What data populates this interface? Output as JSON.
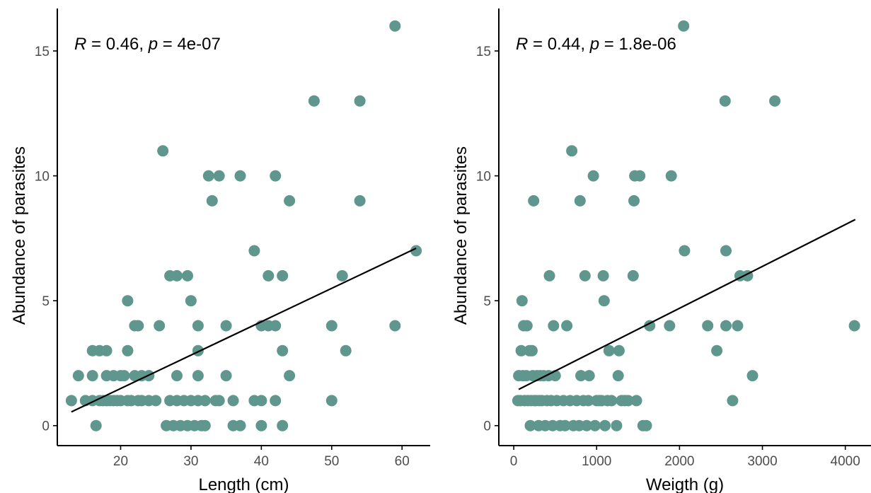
{
  "colors": {
    "point": "#5f968e",
    "fit_line": "#000000",
    "axis": "#000000",
    "tick_text": "#4d4d4d"
  },
  "chart_data": [
    {
      "type": "scatter",
      "xlabel": "Length (cm)",
      "ylabel": "Abundance of parasites",
      "xlim": [
        11,
        64
      ],
      "ylim": [
        -0.8,
        16.7
      ],
      "xticks": [
        20,
        30,
        40,
        50,
        60
      ],
      "yticks": [
        0,
        5,
        10,
        15
      ],
      "grid": false,
      "annotation": {
        "r_symbol": "R",
        "r_value": " = 0.46, ",
        "p_symbol": "p",
        "p_value": " = 4e-07"
      },
      "fit_line": {
        "x": [
          13,
          62
        ],
        "y": [
          0.55,
          7.1
        ]
      },
      "points": [
        [
          13,
          1
        ],
        [
          14,
          2
        ],
        [
          15,
          1
        ],
        [
          16,
          1
        ],
        [
          16,
          2
        ],
        [
          16,
          3
        ],
        [
          16.5,
          0
        ],
        [
          17,
          1
        ],
        [
          17,
          3
        ],
        [
          17.5,
          1
        ],
        [
          18,
          2
        ],
        [
          18,
          1
        ],
        [
          18,
          3
        ],
        [
          18.5,
          1
        ],
        [
          19,
          2
        ],
        [
          19,
          1
        ],
        [
          19.5,
          1
        ],
        [
          20,
          2
        ],
        [
          20,
          1
        ],
        [
          20.5,
          2
        ],
        [
          21,
          1
        ],
        [
          21,
          3
        ],
        [
          21,
          5
        ],
        [
          21.5,
          1
        ],
        [
          22,
          2
        ],
        [
          22,
          4
        ],
        [
          22.5,
          4
        ],
        [
          22.5,
          1
        ],
        [
          23,
          2
        ],
        [
          23,
          1
        ],
        [
          24,
          2
        ],
        [
          24,
          1
        ],
        [
          25,
          1
        ],
        [
          25.5,
          4
        ],
        [
          26,
          11
        ],
        [
          26.5,
          0
        ],
        [
          27,
          1
        ],
        [
          27,
          6
        ],
        [
          27.5,
          0
        ],
        [
          28,
          6
        ],
        [
          28,
          2
        ],
        [
          28,
          1
        ],
        [
          28.5,
          0
        ],
        [
          29,
          1
        ],
        [
          29.5,
          0
        ],
        [
          29.5,
          6
        ],
        [
          30,
          1
        ],
        [
          30,
          5
        ],
        [
          30.5,
          0
        ],
        [
          31,
          3
        ],
        [
          31,
          4
        ],
        [
          31,
          2
        ],
        [
          31,
          1
        ],
        [
          31.5,
          0
        ],
        [
          32,
          1
        ],
        [
          32,
          0
        ],
        [
          32.5,
          10
        ],
        [
          33,
          9
        ],
        [
          33.5,
          1
        ],
        [
          34,
          10
        ],
        [
          34,
          1
        ],
        [
          35,
          4
        ],
        [
          35,
          2
        ],
        [
          36,
          1
        ],
        [
          36,
          0
        ],
        [
          37,
          10
        ],
        [
          37,
          0
        ],
        [
          39,
          7
        ],
        [
          39,
          1
        ],
        [
          40,
          4
        ],
        [
          40,
          1
        ],
        [
          40,
          0
        ],
        [
          41,
          6
        ],
        [
          41,
          4
        ],
        [
          42,
          10
        ],
        [
          42,
          4
        ],
        [
          42,
          1
        ],
        [
          43,
          6
        ],
        [
          43,
          3
        ],
        [
          43,
          0
        ],
        [
          44,
          2
        ],
        [
          44,
          9
        ],
        [
          47.5,
          13
        ],
        [
          50,
          4
        ],
        [
          50,
          1
        ],
        [
          51.5,
          6
        ],
        [
          52,
          3
        ],
        [
          54,
          13
        ],
        [
          54,
          9
        ],
        [
          59,
          16
        ],
        [
          59,
          4
        ],
        [
          62,
          7
        ]
      ]
    },
    {
      "type": "scatter",
      "xlabel": "Weigth (g)",
      "ylabel": "Abundance of parasites",
      "xlim": [
        -180,
        4310
      ],
      "ylim": [
        -0.8,
        16.7
      ],
      "xticks": [
        0,
        1000,
        2000,
        3000,
        4000
      ],
      "yticks": [
        0,
        5,
        10,
        15
      ],
      "grid": false,
      "annotation": {
        "r_symbol": "R",
        "r_value": " = 0.44, ",
        "p_symbol": "p",
        "p_value": " = 1.8e-06"
      },
      "fit_line": {
        "x": [
          60,
          4120
        ],
        "y": [
          1.45,
          8.25
        ]
      },
      "points": [
        [
          50,
          1
        ],
        [
          60,
          2
        ],
        [
          80,
          1
        ],
        [
          90,
          3
        ],
        [
          100,
          5
        ],
        [
          110,
          2
        ],
        [
          120,
          4
        ],
        [
          130,
          1
        ],
        [
          150,
          2
        ],
        [
          160,
          4
        ],
        [
          170,
          1
        ],
        [
          190,
          3
        ],
        [
          200,
          0
        ],
        [
          210,
          1
        ],
        [
          220,
          3
        ],
        [
          230,
          2
        ],
        [
          240,
          9
        ],
        [
          250,
          1
        ],
        [
          270,
          1
        ],
        [
          280,
          2
        ],
        [
          300,
          0
        ],
        [
          310,
          1
        ],
        [
          320,
          2
        ],
        [
          340,
          1
        ],
        [
          360,
          2
        ],
        [
          380,
          0
        ],
        [
          400,
          1
        ],
        [
          420,
          2
        ],
        [
          430,
          6
        ],
        [
          450,
          1
        ],
        [
          470,
          0
        ],
        [
          480,
          4
        ],
        [
          500,
          2
        ],
        [
          520,
          1
        ],
        [
          560,
          0
        ],
        [
          600,
          1
        ],
        [
          620,
          0
        ],
        [
          640,
          4
        ],
        [
          680,
          1
        ],
        [
          700,
          11
        ],
        [
          720,
          0
        ],
        [
          760,
          1
        ],
        [
          790,
          0
        ],
        [
          800,
          9
        ],
        [
          810,
          2
        ],
        [
          840,
          1
        ],
        [
          860,
          6
        ],
        [
          880,
          0
        ],
        [
          900,
          1
        ],
        [
          910,
          2
        ],
        [
          960,
          10
        ],
        [
          980,
          0
        ],
        [
          1000,
          1
        ],
        [
          1030,
          1
        ],
        [
          1060,
          1
        ],
        [
          1080,
          6
        ],
        [
          1090,
          5
        ],
        [
          1100,
          0
        ],
        [
          1130,
          1
        ],
        [
          1150,
          3
        ],
        [
          1180,
          1
        ],
        [
          1240,
          0
        ],
        [
          1260,
          2
        ],
        [
          1270,
          3
        ],
        [
          1300,
          1
        ],
        [
          1340,
          1
        ],
        [
          1380,
          1
        ],
        [
          1440,
          6
        ],
        [
          1450,
          9
        ],
        [
          1460,
          10
        ],
        [
          1480,
          1
        ],
        [
          1520,
          10
        ],
        [
          1560,
          0
        ],
        [
          1600,
          0
        ],
        [
          1640,
          4
        ],
        [
          1880,
          4
        ],
        [
          1900,
          10
        ],
        [
          2050,
          16
        ],
        [
          2060,
          7
        ],
        [
          2340,
          4
        ],
        [
          2450,
          3
        ],
        [
          2550,
          13
        ],
        [
          2560,
          7
        ],
        [
          2560,
          4
        ],
        [
          2640,
          1
        ],
        [
          2700,
          4
        ],
        [
          2730,
          6
        ],
        [
          2820,
          6
        ],
        [
          2880,
          2
        ],
        [
          3150,
          13
        ],
        [
          4110,
          4
        ]
      ]
    }
  ]
}
